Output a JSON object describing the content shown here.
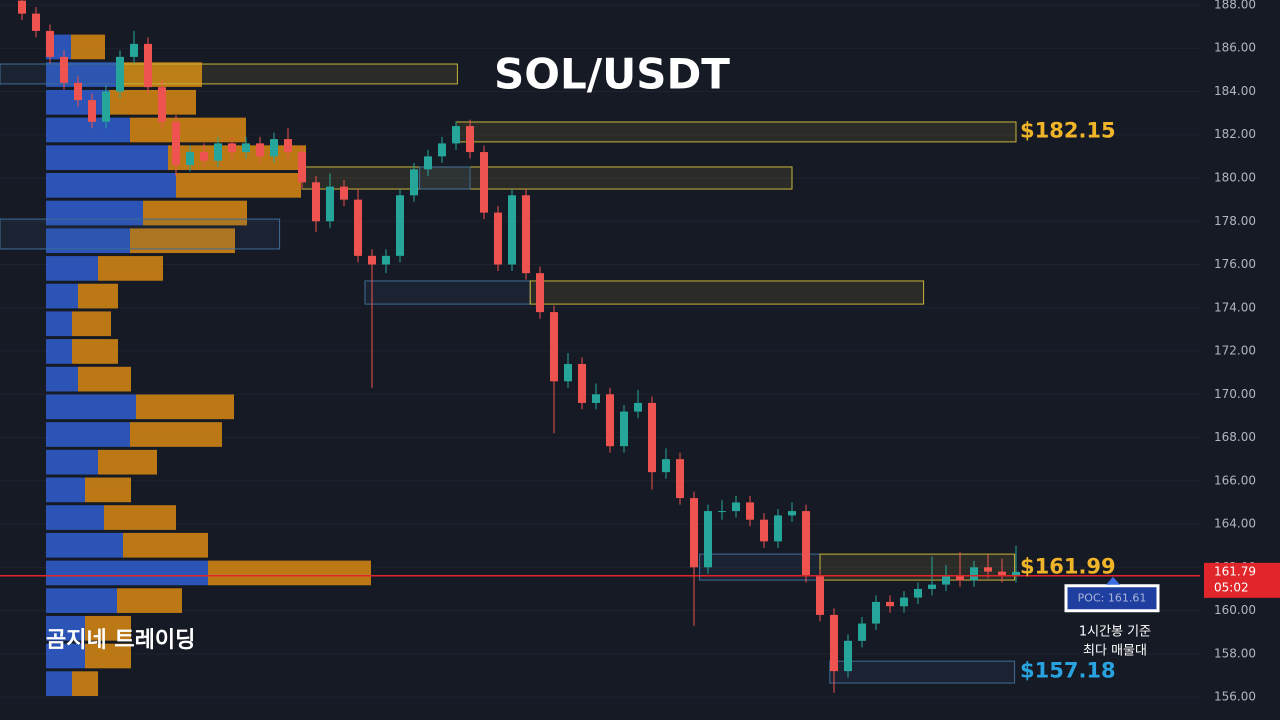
{
  "chart_data": {
    "type": "candlestick",
    "title": "SOL/USDT",
    "watermark": "곰지네 트레이딩",
    "ylim": [
      154.94,
      188.23
    ],
    "yticks": [
      {
        "value": 156,
        "label": "156.00"
      },
      {
        "value": 158,
        "label": "158.00"
      },
      {
        "value": 160,
        "label": "160.00"
      },
      {
        "value": 162,
        "label": "162.00"
      },
      {
        "value": 164,
        "label": "164.00"
      },
      {
        "value": 166,
        "label": "166.00"
      },
      {
        "value": 168,
        "label": "168.00"
      },
      {
        "value": 170,
        "label": "170.00"
      },
      {
        "value": 172,
        "label": "172.00"
      },
      {
        "value": 174,
        "label": "174.00"
      },
      {
        "value": 176,
        "label": "176.00"
      },
      {
        "value": 178,
        "label": "178.00"
      },
      {
        "value": 180,
        "label": "180.00"
      },
      {
        "value": 182,
        "label": "182.00"
      },
      {
        "value": 184,
        "label": "184.00"
      },
      {
        "value": 186,
        "label": "186.00"
      },
      {
        "value": 188,
        "label": "188.00"
      }
    ],
    "grid": true,
    "up_color": "#26a69a",
    "down_color": "#ef5350",
    "candles": [
      [
        188.2,
        188.4,
        187.3,
        187.6
      ],
      [
        187.6,
        187.9,
        186.5,
        186.8
      ],
      [
        186.8,
        187.1,
        185.3,
        185.6
      ],
      [
        185.6,
        185.9,
        184.1,
        184.4
      ],
      [
        184.4,
        184.7,
        183.3,
        183.6
      ],
      [
        183.6,
        183.9,
        182.3,
        182.6
      ],
      [
        182.6,
        184.3,
        182.3,
        184.0
      ],
      [
        184.0,
        185.9,
        183.7,
        185.6
      ],
      [
        185.6,
        186.8,
        185.3,
        186.2
      ],
      [
        186.2,
        186.5,
        183.9,
        184.2
      ],
      [
        184.2,
        184.5,
        182.3,
        182.6
      ],
      [
        182.6,
        182.9,
        180.1,
        180.6
      ],
      [
        180.6,
        181.5,
        180.3,
        181.2
      ],
      [
        181.2,
        181.6,
        180.5,
        180.8
      ],
      [
        180.8,
        181.9,
        180.5,
        181.6
      ],
      [
        181.6,
        181.9,
        180.9,
        181.2
      ],
      [
        181.2,
        181.9,
        180.9,
        181.6
      ],
      [
        181.6,
        181.9,
        180.7,
        181.0
      ],
      [
        181.0,
        182.1,
        180.7,
        181.8
      ],
      [
        181.8,
        182.3,
        180.9,
        181.2
      ],
      [
        181.2,
        181.5,
        179.5,
        179.8
      ],
      [
        179.8,
        180.1,
        177.5,
        178.0
      ],
      [
        178.0,
        180.2,
        177.7,
        179.6
      ],
      [
        179.6,
        179.9,
        178.7,
        179.0
      ],
      [
        179.0,
        179.5,
        176.1,
        176.4
      ],
      [
        176.4,
        176.7,
        170.3,
        176.0
      ],
      [
        176.0,
        176.7,
        175.6,
        176.4
      ],
      [
        176.4,
        179.5,
        176.1,
        179.2
      ],
      [
        179.2,
        180.7,
        178.9,
        180.4
      ],
      [
        180.4,
        181.3,
        180.1,
        181.0
      ],
      [
        181.0,
        181.9,
        180.7,
        181.6
      ],
      [
        181.6,
        182.6,
        181.3,
        182.4
      ],
      [
        182.4,
        182.7,
        180.9,
        181.2
      ],
      [
        181.2,
        181.5,
        178.1,
        178.4
      ],
      [
        178.4,
        178.7,
        175.7,
        176.0
      ],
      [
        176.0,
        179.5,
        175.7,
        179.2
      ],
      [
        179.2,
        179.5,
        175.3,
        175.6
      ],
      [
        175.6,
        175.9,
        173.5,
        173.8
      ],
      [
        173.8,
        174.1,
        168.2,
        170.6
      ],
      [
        170.6,
        171.9,
        170.3,
        171.4
      ],
      [
        171.4,
        171.7,
        169.3,
        169.6
      ],
      [
        169.6,
        170.5,
        169.3,
        170.0
      ],
      [
        170.0,
        170.3,
        167.3,
        167.6
      ],
      [
        167.6,
        169.5,
        167.3,
        169.2
      ],
      [
        169.2,
        170.2,
        168.9,
        169.6
      ],
      [
        169.6,
        169.9,
        165.6,
        166.4
      ],
      [
        166.4,
        167.5,
        166.1,
        167.0
      ],
      [
        167.0,
        167.3,
        164.9,
        165.2
      ],
      [
        165.2,
        165.5,
        159.3,
        162.0
      ],
      [
        162.0,
        164.9,
        161.7,
        164.6
      ],
      [
        164.6,
        165.1,
        164.2,
        164.6
      ],
      [
        164.6,
        165.3,
        164.3,
        165.0
      ],
      [
        165.0,
        165.3,
        163.9,
        164.2
      ],
      [
        164.2,
        164.5,
        162.9,
        163.2
      ],
      [
        163.2,
        164.7,
        162.9,
        164.4
      ],
      [
        164.4,
        165.0,
        164.1,
        164.6
      ],
      [
        164.6,
        164.9,
        161.3,
        161.6
      ],
      [
        161.6,
        161.9,
        159.5,
        159.8
      ],
      [
        159.8,
        160.1,
        156.2,
        157.2
      ],
      [
        157.2,
        158.9,
        156.9,
        158.6
      ],
      [
        158.6,
        159.7,
        158.3,
        159.4
      ],
      [
        159.4,
        160.7,
        159.1,
        160.4
      ],
      [
        160.4,
        160.7,
        159.9,
        160.2
      ],
      [
        160.2,
        160.9,
        159.9,
        160.6
      ],
      [
        160.6,
        161.3,
        160.3,
        161.0
      ],
      [
        161.0,
        162.5,
        160.7,
        161.2
      ],
      [
        161.2,
        162.1,
        160.9,
        161.6
      ],
      [
        161.6,
        162.7,
        161.1,
        161.4
      ],
      [
        161.4,
        162.3,
        161.1,
        162.0
      ],
      [
        162.0,
        162.6,
        161.5,
        161.8
      ],
      [
        161.8,
        162.4,
        161.3,
        161.6
      ],
      [
        161.6,
        163.0,
        161.3,
        161.79
      ]
    ],
    "volume_profile": {
      "buy_color": "#2f5fd0",
      "sell_color": "#d88a12",
      "rows": [
        {
          "price": 186.06,
          "buy": 25,
          "sell": 34
        },
        {
          "price": 184.78,
          "buy": 72,
          "sell": 84
        },
        {
          "price": 183.5,
          "buy": 63,
          "sell": 87
        },
        {
          "price": 182.22,
          "buy": 84,
          "sell": 116
        },
        {
          "price": 180.94,
          "buy": 122,
          "sell": 138
        },
        {
          "price": 179.66,
          "buy": 130,
          "sell": 125
        },
        {
          "price": 178.38,
          "buy": 97,
          "sell": 104
        },
        {
          "price": 177.1,
          "buy": 84,
          "sell": 105
        },
        {
          "price": 175.82,
          "buy": 52,
          "sell": 65
        },
        {
          "price": 174.54,
          "buy": 32,
          "sell": 40
        },
        {
          "price": 173.26,
          "buy": 26,
          "sell": 39
        },
        {
          "price": 171.98,
          "buy": 26,
          "sell": 46
        },
        {
          "price": 170.7,
          "buy": 32,
          "sell": 53
        },
        {
          "price": 169.42,
          "buy": 90,
          "sell": 98
        },
        {
          "price": 168.14,
          "buy": 84,
          "sell": 92
        },
        {
          "price": 166.86,
          "buy": 52,
          "sell": 59
        },
        {
          "price": 165.58,
          "buy": 39,
          "sell": 46
        },
        {
          "price": 164.3,
          "buy": 58,
          "sell": 72
        },
        {
          "price": 163.02,
          "buy": 77,
          "sell": 85
        },
        {
          "price": 161.74,
          "buy": 162,
          "sell": 163
        },
        {
          "price": 160.46,
          "buy": 71,
          "sell": 65
        },
        {
          "price": 159.18,
          "buy": 39,
          "sell": 46
        },
        {
          "price": 157.9,
          "buy": 39,
          "sell": 46
        },
        {
          "price": 156.62,
          "buy": 26,
          "sell": 26
        }
      ]
    },
    "zones": [
      {
        "low": 184.35,
        "high": 185.27,
        "from": 7,
        "to": 31.1,
        "color": "#c9b43a"
      },
      {
        "low": 184.35,
        "high": 185.27,
        "from": -1.6,
        "to": 7,
        "color": "#3f6d96"
      },
      {
        "low": 181.67,
        "high": 182.59,
        "from": 31,
        "to": 71,
        "color": "#c9b43a"
      },
      {
        "low": 179.49,
        "high": 180.51,
        "from": 20,
        "to": 55,
        "color": "#c9b43a"
      },
      {
        "low": 179.49,
        "high": 180.51,
        "from": 28.4,
        "to": 32,
        "color": "#3f6d96"
      },
      {
        "low": 176.72,
        "high": 178.1,
        "from": -1.6,
        "to": 18.4,
        "color": "#3f6d96"
      },
      {
        "low": 174.17,
        "high": 175.24,
        "from": 24.5,
        "to": 36.3,
        "color": "#3f6d96"
      },
      {
        "low": 174.17,
        "high": 175.24,
        "from": 36.3,
        "to": 64.4,
        "color": "#c9b43a"
      },
      {
        "low": 161.41,
        "high": 162.61,
        "from": 48.4,
        "to": 57,
        "color": "#3f6d96"
      },
      {
        "low": 161.41,
        "high": 162.61,
        "from": 57,
        "to": 70.9,
        "color": "#c9b43a"
      },
      {
        "low": 156.65,
        "high": 157.66,
        "from": 57.7,
        "to": 70.9,
        "color": "#3f6d96"
      }
    ],
    "price_labels": [
      {
        "value": 182.15,
        "label": "$182.15",
        "color": "#f0b429"
      },
      {
        "value": 161.99,
        "label": "$161.99",
        "color": "#f0b429"
      },
      {
        "value": 157.18,
        "label": "$157.18",
        "color": "#29a3e0"
      }
    ],
    "poc": {
      "value": 161.61,
      "label": "POC: 161.61",
      "color": "#e0262a"
    },
    "last_price": {
      "value": 161.79,
      "label": "161.79"
    },
    "countdown": "05:02",
    "note": [
      "1시간봉 기준",
      "최다 매물대"
    ]
  }
}
